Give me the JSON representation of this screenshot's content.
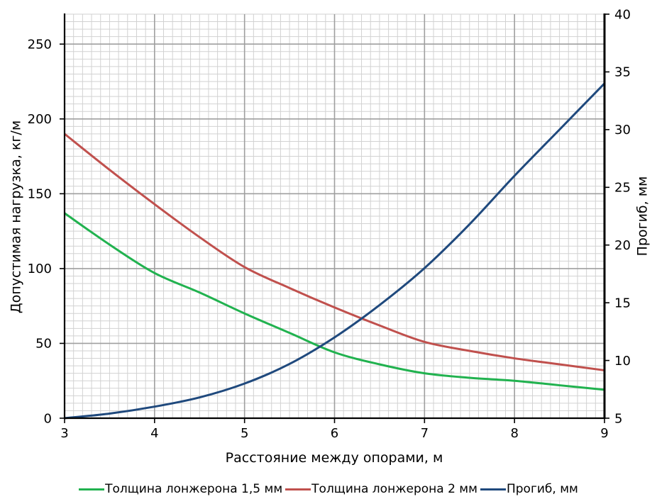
{
  "chart_data": {
    "type": "line",
    "xlabel": "Расстояние между опорами, м",
    "ylabel": "Допустимая нагрузка, кг/м",
    "y2label": "Прогиб, мм",
    "xlim": [
      3,
      9
    ],
    "ylim": [
      0,
      270
    ],
    "y2lim": [
      5,
      40
    ],
    "x_ticks": [
      3,
      4,
      5,
      6,
      7,
      8,
      9
    ],
    "y_ticks": [
      0,
      50,
      100,
      150,
      200,
      250
    ],
    "y2_ticks": [
      5,
      10,
      15,
      20,
      25,
      30,
      35,
      40
    ],
    "grid": true,
    "legend_position": "bottom",
    "x": [
      3,
      3.5,
      4,
      4.5,
      5,
      5.5,
      6,
      6.5,
      7,
      7.5,
      8,
      8.5,
      9
    ],
    "series": [
      {
        "name": "Толщина лонжерона 1,5 мм",
        "axis": "left",
        "color": "#21b24f",
        "values": [
          137,
          116,
          97,
          84,
          70,
          57,
          44,
          36,
          30,
          27,
          25,
          22,
          19
        ]
      },
      {
        "name": "Толщина лонжерона 2 мм",
        "axis": "left",
        "color": "#c0504d",
        "values": [
          190,
          166,
          143,
          121,
          101,
          87,
          74,
          62,
          51,
          45,
          40,
          36,
          32
        ]
      },
      {
        "name": "Прогиб, мм",
        "axis": "right",
        "color": "#1f497d",
        "values": [
          5.0,
          5.4,
          6.0,
          6.8,
          8.0,
          9.7,
          12.0,
          14.8,
          18.0,
          21.8,
          26.0,
          30.0,
          34.0
        ]
      }
    ]
  }
}
